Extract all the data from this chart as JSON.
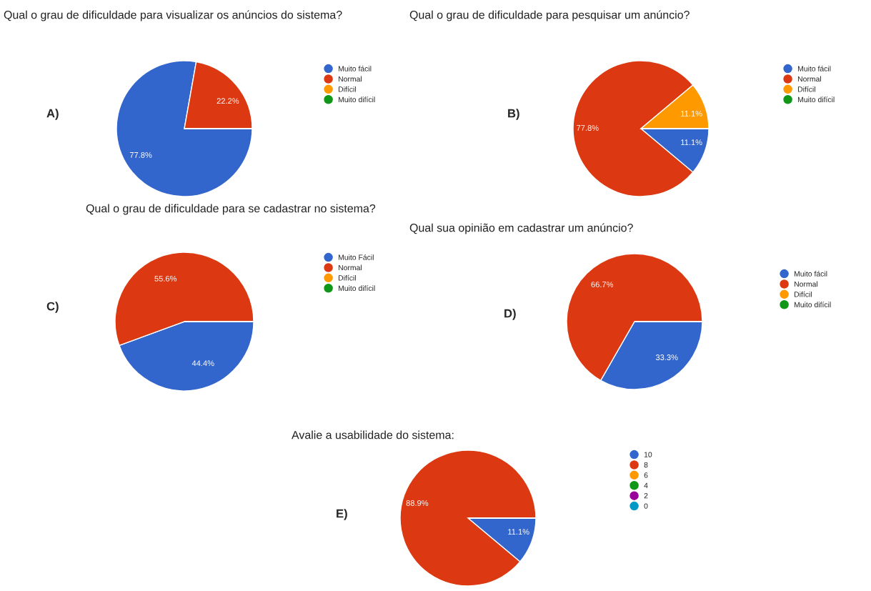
{
  "chart_data": [
    {
      "type": "pie",
      "title": "Qual o grau de dificuldade para visualizar os anúncios do sistema?",
      "categories": [
        "Muito fácil",
        "Normal",
        "Difícil",
        "Muito difícil"
      ],
      "values": [
        77.8,
        22.2,
        0,
        0
      ],
      "value_labels": [
        "77.8%",
        "22.2%",
        null,
        null
      ],
      "colors": [
        "#3366cc",
        "#dc3912",
        "#ff9900",
        "#109618"
      ],
      "legend": "right",
      "annotations": [
        "A)"
      ]
    },
    {
      "type": "pie",
      "title": "Qual o grau de dificuldade para pesquisar um anúncio?",
      "categories": [
        "Muito fácil",
        "Normal",
        "Difícil",
        "Muito difícil"
      ],
      "values": [
        11.1,
        77.8,
        11.1,
        0
      ],
      "value_labels": [
        "11.1%",
        "77.8%",
        "11.1%",
        null
      ],
      "colors": [
        "#3366cc",
        "#dc3912",
        "#ff9900",
        "#109618"
      ],
      "legend": "right",
      "annotations": [
        "B)"
      ]
    },
    {
      "type": "pie",
      "title": "Qual o grau de dificuldade para se cadastrar no sistema?",
      "categories": [
        "Muito Fácil",
        "Normal",
        "Difícil",
        "Muito difícil"
      ],
      "values": [
        44.4,
        55.6,
        0,
        0
      ],
      "value_labels": [
        "44.4%",
        "55.6%",
        null,
        null
      ],
      "colors": [
        "#3366cc",
        "#dc3912",
        "#ff9900",
        "#109618"
      ],
      "legend": "right",
      "annotations": [
        "C)"
      ]
    },
    {
      "type": "pie",
      "title": "Qual sua opinião em cadastrar um anúncio?",
      "categories": [
        "Muito fácil",
        "Normal",
        "Difícil",
        "Muito difícil"
      ],
      "values": [
        33.3,
        66.7,
        0,
        0
      ],
      "value_labels": [
        "33.3%",
        "66.7%",
        null,
        null
      ],
      "colors": [
        "#3366cc",
        "#dc3912",
        "#ff9900",
        "#109618"
      ],
      "legend": "right",
      "annotations": [
        "D)"
      ]
    },
    {
      "type": "pie",
      "title": "Avalie a usabilidade do sistema:",
      "categories": [
        "10",
        "8",
        "6",
        "4",
        "2",
        "0"
      ],
      "values": [
        11.1,
        88.9,
        0,
        0,
        0,
        0
      ],
      "value_labels": [
        "11.1%",
        "88.9%",
        null,
        null,
        null,
        null
      ],
      "colors": [
        "#3366cc",
        "#dc3912",
        "#ff9900",
        "#109618",
        "#990099",
        "#0099c6"
      ],
      "legend": "right",
      "annotations": [
        "E)"
      ]
    }
  ]
}
